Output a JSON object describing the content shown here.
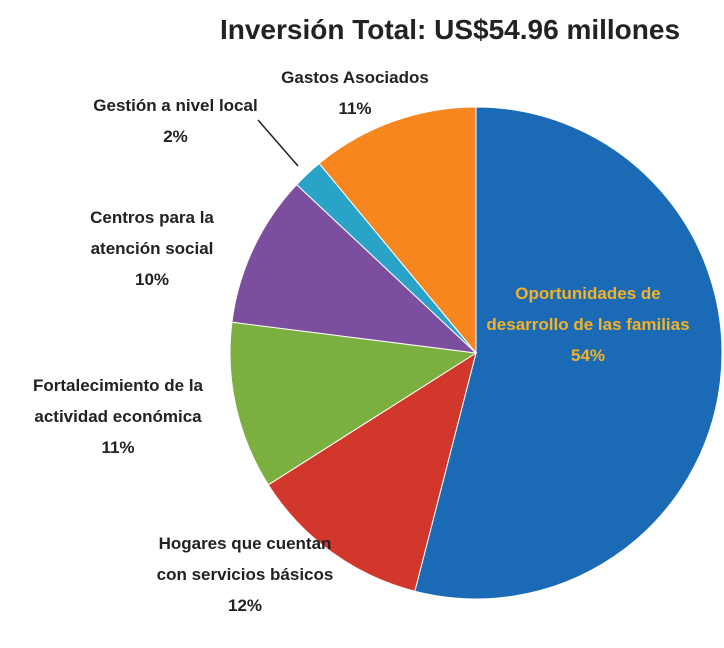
{
  "chart_data": {
    "type": "pie",
    "title": "Inversión Total: US$54.96 millones",
    "categories": [
      "Oportunidades de desarrollo de las familias",
      "Hogares que cuentan con servicios básicos",
      "Fortalecimiento de la actividad económica",
      "Centros para la atención social",
      "Gestión a nivel local",
      "Gastos Asociados"
    ],
    "values": [
      54,
      12,
      11,
      10,
      2,
      11
    ],
    "value_labels": [
      "54%",
      "12%",
      "11%",
      "10%",
      "2%",
      "11%"
    ],
    "colors": [
      "#1b6ab5",
      "#d2372c",
      "#7bb041",
      "#7b4e9e",
      "#2aa3c8",
      "#f7861e"
    ]
  }
}
